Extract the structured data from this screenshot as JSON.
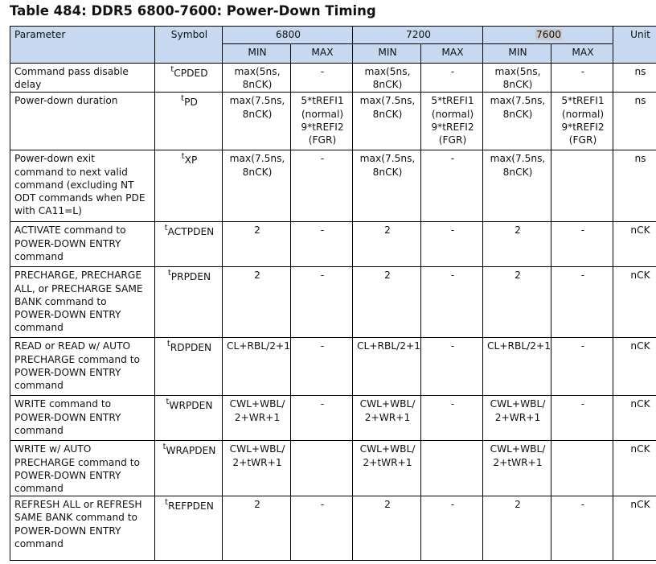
{
  "title": "Table 484: DDR5 6800-7600: Power-Down Timing",
  "header": {
    "parameter": "Parameter",
    "symbol": "Symbol",
    "speed_6800": "6800",
    "speed_7200": "7200",
    "speed_7600": "7600",
    "unit": "Unit",
    "min": "MIN",
    "max": "MAX"
  },
  "rows": [
    {
      "parameter": [
        "Command pass disable",
        "delay"
      ],
      "symbol_sup": "t",
      "symbol": "CPDED",
      "min6800": [
        "max(5ns,",
        "8nCK)"
      ],
      "max6800": [
        "-"
      ],
      "min7200": [
        "max(5ns,",
        "8nCK)"
      ],
      "max7200": [
        "-"
      ],
      "min7600": [
        "max(5ns,",
        "8nCK)"
      ],
      "max7600": [
        "-"
      ],
      "unit": "ns"
    },
    {
      "parameter": [
        "Power-down duration"
      ],
      "symbol_sup": "t",
      "symbol": "PD",
      "min6800": [
        "max(7.5ns,",
        "8nCK)"
      ],
      "max6800": [
        "5*tREFI1",
        "(normal)",
        "9*tREFI2",
        "(FGR)"
      ],
      "min7200": [
        "max(7.5ns,",
        "8nCK)"
      ],
      "max7200": [
        "5*tREFI1",
        "(normal)",
        "9*tREFI2",
        "(FGR)"
      ],
      "min7600": [
        "max(7.5ns,",
        "8nCK)"
      ],
      "max7600": [
        "5*tREFI1",
        "(normal)",
        "9*tREFI2",
        "(FGR)"
      ],
      "unit": "ns"
    },
    {
      "parameter": [
        "Power-down exit",
        "command to next valid",
        "command (excluding NT",
        "ODT commands when PDE",
        "with CA11=L)"
      ],
      "symbol_sup": "t",
      "symbol": "XP",
      "min6800": [
        "max(7.5ns,",
        "8nCK)"
      ],
      "max6800": [
        "-"
      ],
      "min7200": [
        "max(7.5ns,",
        "8nCK)"
      ],
      "max7200": [
        "-"
      ],
      "min7600": [
        "max(7.5ns,",
        "8nCK)"
      ],
      "max7600": [
        ""
      ],
      "unit": "ns"
    },
    {
      "parameter": [
        "ACTIVATE command to",
        "POWER-DOWN ENTRY",
        "command"
      ],
      "symbol_sup": "t",
      "symbol": "ACTPDEN",
      "min6800": [
        "2"
      ],
      "max6800": [
        "-"
      ],
      "min7200": [
        "2"
      ],
      "max7200": [
        "-"
      ],
      "min7600": [
        "2"
      ],
      "max7600": [
        "-"
      ],
      "unit": "nCK"
    },
    {
      "parameter": [
        "PRECHARGE, PRECHARGE",
        "ALL, or PRECHARGE SAME",
        "BANK command to",
        "POWER-DOWN ENTRY",
        "command"
      ],
      "symbol_sup": "t",
      "symbol": "PRPDEN",
      "min6800": [
        "2"
      ],
      "max6800": [
        "-"
      ],
      "min7200": [
        "2"
      ],
      "max7200": [
        "-"
      ],
      "min7600": [
        "2"
      ],
      "max7600": [
        "-"
      ],
      "unit": "nCK"
    },
    {
      "parameter": [
        "READ or READ w/ AUTO",
        "PRECHARGE command to",
        "POWER-DOWN ENTRY",
        "command"
      ],
      "symbol_sup": "t",
      "symbol": "RDPDEN",
      "min6800": [
        "CL+RBL/2+1"
      ],
      "max6800": [
        "-"
      ],
      "min7200": [
        "CL+RBL/2+1"
      ],
      "max7200": [
        "-"
      ],
      "min7600": [
        "CL+RBL/2+1"
      ],
      "max7600": [
        "-"
      ],
      "unit": "nCK"
    },
    {
      "parameter": [
        "WRITE command to",
        "POWER-DOWN ENTRY",
        "command"
      ],
      "symbol_sup": "t",
      "symbol": "WRPDEN",
      "min6800": [
        "CWL+WBL/",
        "2+WR+1"
      ],
      "max6800": [
        "-"
      ],
      "min7200": [
        "CWL+WBL/",
        "2+WR+1"
      ],
      "max7200": [
        "-"
      ],
      "min7600": [
        "CWL+WBL/",
        "2+WR+1"
      ],
      "max7600": [
        "-"
      ],
      "unit": "nCK"
    },
    {
      "parameter": [
        "WRITE w/ AUTO",
        "PRECHARGE command to",
        "POWER-DOWN ENTRY",
        "command"
      ],
      "symbol_sup": "t",
      "symbol": "WRAPDEN",
      "min6800": [
        "CWL+WBL/",
        "2+tWR+1"
      ],
      "max6800": [
        ""
      ],
      "min7200": [
        "CWL+WBL/",
        "2+tWR+1"
      ],
      "max7200": [
        ""
      ],
      "min7600": [
        "CWL+WBL/",
        "2+tWR+1"
      ],
      "max7600": [
        ""
      ],
      "unit": "nCK"
    },
    {
      "parameter": [
        "REFRESH ALL or REFRESH",
        "SAME BANK command to",
        "POWER-DOWN ENTRY",
        "command"
      ],
      "symbol_sup": "t",
      "symbol": "REFPDEN",
      "min6800": [
        "2"
      ],
      "max6800": [
        "-"
      ],
      "min7200": [
        "2"
      ],
      "max7200": [
        "-"
      ],
      "min7600": [
        "2"
      ],
      "max7600": [
        "-"
      ],
      "unit": "nCK"
    }
  ]
}
